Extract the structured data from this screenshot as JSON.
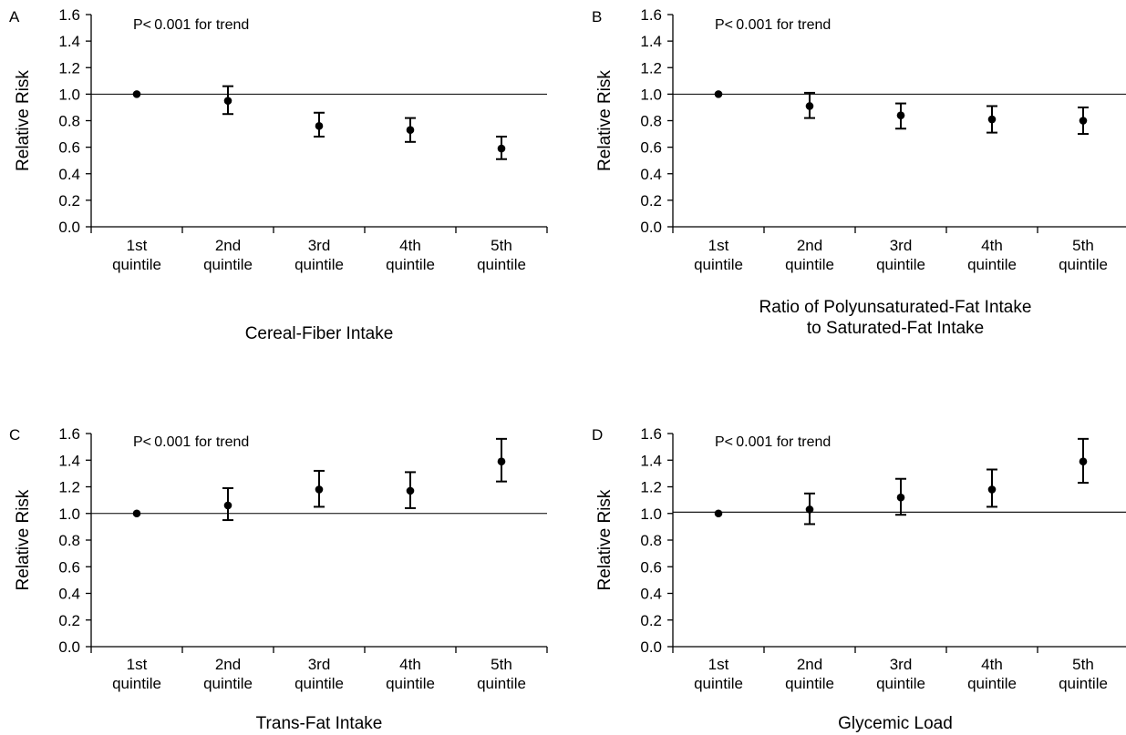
{
  "chart_data": [
    {
      "type": "scatter",
      "panel_label": "A",
      "annotation": "P<0.001 for trend",
      "ylabel": "Relative Risk",
      "xlabel": [
        "Cereal-Fiber Intake"
      ],
      "categories": [
        [
          "1st",
          "quintile"
        ],
        [
          "2nd",
          "quintile"
        ],
        [
          "3rd",
          "quintile"
        ],
        [
          "4th",
          "quintile"
        ],
        [
          "5th",
          "quintile"
        ]
      ],
      "values": [
        1.0,
        0.95,
        0.76,
        0.73,
        0.59
      ],
      "lower": [
        1.0,
        0.85,
        0.68,
        0.64,
        0.51
      ],
      "upper": [
        1.0,
        1.06,
        0.86,
        0.82,
        0.68
      ],
      "reference_line": 1.0,
      "ylim": [
        0,
        1.6
      ],
      "yticks": [
        "0.0",
        "0.2",
        "0.4",
        "0.6",
        "0.8",
        "1.0",
        "1.2",
        "1.4",
        "1.6"
      ]
    },
    {
      "type": "scatter",
      "panel_label": "B",
      "annotation": "P<0.001 for trend",
      "ylabel": "Relative Risk",
      "xlabel": [
        "Ratio of Polyunsaturated-Fat Intake",
        "to Saturated-Fat Intake"
      ],
      "categories": [
        [
          "1st",
          "quintile"
        ],
        [
          "2nd",
          "quintile"
        ],
        [
          "3rd",
          "quintile"
        ],
        [
          "4th",
          "quintile"
        ],
        [
          "5th",
          "quintile"
        ]
      ],
      "values": [
        1.0,
        0.91,
        0.84,
        0.81,
        0.8
      ],
      "lower": [
        1.0,
        0.82,
        0.74,
        0.71,
        0.7
      ],
      "upper": [
        1.0,
        1.01,
        0.93,
        0.91,
        0.9
      ],
      "reference_line": 1.0,
      "ylim": [
        0,
        1.6
      ],
      "yticks": [
        "0.0",
        "0.2",
        "0.4",
        "0.6",
        "0.8",
        "1.0",
        "1.2",
        "1.4",
        "1.6"
      ]
    },
    {
      "type": "scatter",
      "panel_label": "C",
      "annotation": "P<0.001 for trend",
      "ylabel": "Relative Risk",
      "xlabel": [
        "Trans-Fat Intake"
      ],
      "categories": [
        [
          "1st",
          "quintile"
        ],
        [
          "2nd",
          "quintile"
        ],
        [
          "3rd",
          "quintile"
        ],
        [
          "4th",
          "quintile"
        ],
        [
          "5th",
          "quintile"
        ]
      ],
      "values": [
        1.0,
        1.06,
        1.18,
        1.17,
        1.39
      ],
      "lower": [
        1.0,
        0.95,
        1.05,
        1.04,
        1.24
      ],
      "upper": [
        1.0,
        1.19,
        1.32,
        1.31,
        1.56
      ],
      "reference_line": 1.0,
      "ylim": [
        0,
        1.6
      ],
      "yticks": [
        "0.0",
        "0.2",
        "0.4",
        "0.6",
        "0.8",
        "1.0",
        "1.2",
        "1.4",
        "1.6"
      ]
    },
    {
      "type": "scatter",
      "panel_label": "D",
      "annotation": "P<0.001 for trend",
      "ylabel": "Relative Risk",
      "xlabel": [
        "Glycemic Load"
      ],
      "categories": [
        [
          "1st",
          "quintile"
        ],
        [
          "2nd",
          "quintile"
        ],
        [
          "3rd",
          "quintile"
        ],
        [
          "4th",
          "quintile"
        ],
        [
          "5th",
          "quintile"
        ]
      ],
      "values": [
        1.0,
        1.03,
        1.12,
        1.18,
        1.39
      ],
      "lower": [
        1.0,
        0.92,
        0.99,
        1.05,
        1.23
      ],
      "upper": [
        1.0,
        1.15,
        1.26,
        1.33,
        1.56
      ],
      "reference_line": 1.01,
      "ylim": [
        0,
        1.6
      ],
      "yticks": [
        "0.0",
        "0.2",
        "0.4",
        "0.6",
        "0.8",
        "1.0",
        "1.2",
        "1.4",
        "1.6"
      ]
    }
  ]
}
